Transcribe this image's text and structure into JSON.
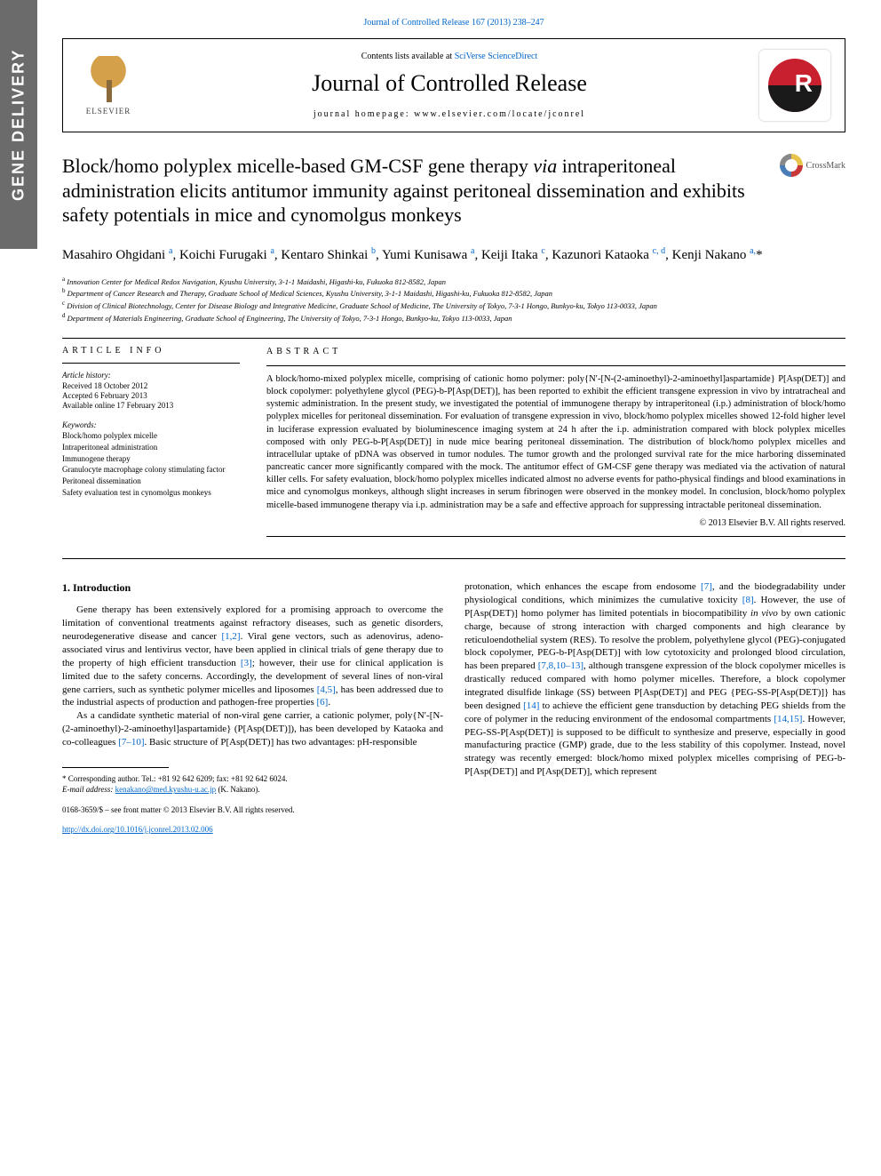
{
  "sidebar": {
    "label": "GENE DELIVERY"
  },
  "header": {
    "top_link": "Journal of Controlled Release 167 (2013) 238–247",
    "contents_prefix": "Contents lists available at ",
    "contents_link": "SciVerse ScienceDirect",
    "journal_name": "Journal of Controlled Release",
    "homepage_label": "journal homepage: ",
    "homepage_url": "www.elsevier.com/locate/jconrel",
    "elsevier": "ELSEVIER"
  },
  "crossmark": {
    "label": "CrossMark"
  },
  "title": {
    "line": "Block/homo polyplex micelle-based GM-CSF gene therapy <span class=\"italic\">via</span> intraperitoneal administration elicits antitumor immunity against peritoneal dissemination and exhibits safety potentials in mice and cynomolgus monkeys"
  },
  "authors_html": "Masahiro Ohgidani <sup>a</sup>, Koichi Furugaki <sup>a</sup>, Kentaro Shinkai <sup>b</sup>, Yumi Kunisawa <sup>a</sup>, Keiji Itaka <sup>c</sup>, Kazunori Kataoka <sup>c, d</sup>, Kenji Nakano <sup>a,</sup>*",
  "affiliations": [
    {
      "sup": "a",
      "text": "Innovation Center for Medical Redox Navigation, Kyushu University, 3-1-1 Maidashi, Higashi-ku, Fukuoka 812-8582, Japan"
    },
    {
      "sup": "b",
      "text": "Department of Cancer Research and Therapy, Graduate School of Medical Sciences, Kyushu University, 3-1-1 Maidashi, Higashi-ku, Fukuoka 812-8582, Japan"
    },
    {
      "sup": "c",
      "text": "Division of Clinical Biotechnology, Center for Disease Biology and Integrative Medicine, Graduate School of Medicine, The University of Tokyo, 7-3-1 Hongo, Bunkyo-ku, Tokyo 113-0033, Japan"
    },
    {
      "sup": "d",
      "text": "Department of Materials Engineering, Graduate School of Engineering, The University of Tokyo, 7-3-1 Hongo, Bunkyo-ku, Tokyo 113-0033, Japan"
    }
  ],
  "article_info": {
    "head": "ARTICLE INFO",
    "history_head": "Article history:",
    "history": [
      "Received 18 October 2012",
      "Accepted 6 February 2013",
      "Available online 17 February 2013"
    ],
    "kw_head": "Keywords:",
    "keywords": [
      "Block/homo polyplex micelle",
      "Intraperitoneal administration",
      "Immunogene therapy",
      "Granulocyte macrophage colony stimulating factor",
      "Peritoneal dissemination",
      "Safety evaluation test in cynomolgus monkeys"
    ]
  },
  "abstract": {
    "head": "ABSTRACT",
    "text": "A block/homo-mixed polyplex micelle, comprising of cationic homo polymer: poly{N′-[N-(2-aminoethyl)-2-aminoethyl]aspartamide} P[Asp(DET)] and block copolymer: polyethylene glycol (PEG)-b-P[Asp(DET)], has been reported to exhibit the efficient transgene expression in vivo by intratracheal and systemic administration. In the present study, we investigated the potential of immunogene therapy by intraperitoneal (i.p.) administration of block/homo polyplex micelles for peritoneal dissemination. For evaluation of transgene expression in vivo, block/homo polyplex micelles showed 12-fold higher level in luciferase expression evaluated by bioluminescence imaging system at 24 h after the i.p. administration compared with block polyplex micelles composed with only PEG-b-P[Asp(DET)] in nude mice bearing peritoneal dissemination. The distribution of block/homo polyplex micelles and intracellular uptake of pDNA was observed in tumor nodules. The tumor growth and the prolonged survival rate for the mice harboring disseminated pancreatic cancer more significantly compared with the mock. The antitumor effect of GM-CSF gene therapy was mediated via the activation of natural killer cells. For safety evaluation, block/homo polyplex micelles indicated almost no adverse events for patho-physical findings and blood examinations in mice and cynomolgus monkeys, although slight increases in serum fibrinogen were observed in the monkey model. In conclusion, block/homo polyplex micelle-based immunogene therapy via i.p. administration may be a safe and effective approach for suppressing intractable peritoneal dissemination.",
    "copyright": "© 2013 Elsevier B.V. All rights reserved."
  },
  "body": {
    "section_title": "1. Introduction",
    "p1_html": "Gene therapy has been extensively explored for a promising approach to overcome the limitation of conventional treatments against refractory diseases, such as genetic disorders, neurodegenerative disease and cancer <span class=\"cite\">[1,2]</span>. Viral gene vectors, such as adenovirus, adeno-associated virus and lentivirus vector, have been applied in clinical trials of gene therapy due to the property of high efficient transduction <span class=\"cite\">[3]</span>; however, their use for clinical application is limited due to the safety concerns. Accordingly, the development of several lines of non-viral gene carriers, such as synthetic polymer micelles and liposomes <span class=\"cite\">[4,5]</span>, has been addressed due to the industrial aspects of production and pathogen-free properties <span class=\"cite\">[6]</span>.",
    "p2_html": "As a candidate synthetic material of non-viral gene carrier, a cationic polymer, poly{N′-[N-(2-aminoethyl)-2-aminoethyl]aspartamide} (P[Asp(DET)]), has been developed by Kataoka and co-colleagues <span class=\"cite\">[7–10]</span>. Basic structure of P[Asp(DET)] has two advantages: pH-responsible",
    "p3_html": "protonation, which enhances the escape from endosome <span class=\"cite\">[7]</span>, and the biodegradability under physiological conditions, which minimizes the cumulative toxicity <span class=\"cite\">[8]</span>. However, the use of P[Asp(DET)] homo polymer has limited potentials in biocompatibility <i>in vivo</i> by own cationic charge, because of strong interaction with charged components and high clearance by reticuloendothelial system (RES). To resolve the problem, polyethylene glycol (PEG)-conjugated block copolymer, PEG-b-P[Asp(DET)] with low cytotoxicity and prolonged blood circulation, has been prepared <span class=\"cite\">[7,8,10–13]</span>, although transgene expression of the block copolymer micelles is drastically reduced compared with homo polymer micelles. Therefore, a block copolymer integrated disulfide linkage (SS) between P[Asp(DET)] and PEG {PEG-SS-P[Asp(DET)]} has been designed <span class=\"cite\">[14]</span> to achieve the efficient gene transduction by detaching PEG shields from the core of polymer in the reducing environment of the endosomal compartments <span class=\"cite\">[14,15]</span>. However, PEG-SS-P[Asp(DET)] is supposed to be difficult to synthesize and preserve, especially in good manufacturing practice (GMP) grade, due to the less stability of this copolymer. Instead, novel strategy was recently emerged: block/homo mixed polyplex micelles comprising of PEG-b-P[Asp(DET)] and P[Asp(DET)], which represent"
  },
  "footnotes": {
    "corr": "* Corresponding author. Tel.: +81 92 642 6209; fax: +81 92 642 6024.",
    "email_label": "E-mail address: ",
    "email": "kenakano@med.kyushu-u.ac.jp",
    "email_suffix": " (K. Nakano).",
    "issn": "0168-3659/$ – see front matter © 2013 Elsevier B.V. All rights reserved.",
    "doi": "http://dx.doi.org/10.1016/j.jconrel.2013.02.006"
  },
  "colors": {
    "sidebar_bg": "#6b6b6b",
    "link": "#0066cc",
    "jcr_red": "#c8202f",
    "jcr_black": "#1a1a1a"
  }
}
